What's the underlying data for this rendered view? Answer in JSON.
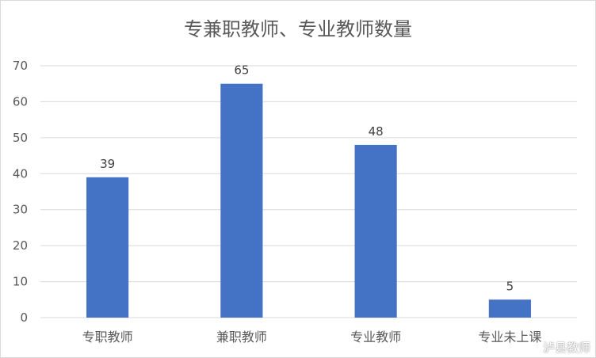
{
  "chart_data": {
    "type": "bar",
    "title": "专兼职教师、专业教师数量",
    "categories": [
      "专职教师",
      "兼职教师",
      "专业教师",
      "专业未上课"
    ],
    "values": [
      39,
      65,
      48,
      5
    ],
    "xlabel": "",
    "ylabel": "",
    "ylim": [
      0,
      70
    ],
    "yticks": [
      0,
      10,
      20,
      30,
      40,
      50,
      60,
      70
    ],
    "grid": true,
    "legend": "none",
    "data_labels": true,
    "bar_color": "#4472c4",
    "grid_color": "#d9d9d9",
    "text_color": "#595959"
  },
  "watermark": "泸县教师"
}
